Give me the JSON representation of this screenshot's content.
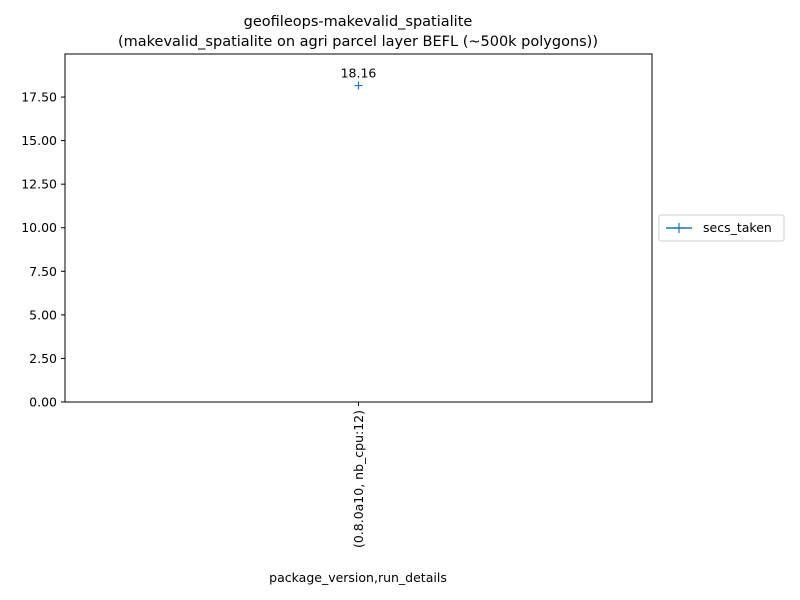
{
  "chart_data": {
    "type": "line",
    "title": "geofileops-makevalid_spatialite",
    "subtitle": "(makevalid_spatialite on agri parcel layer BEFL (~500k polygons))",
    "xlabel": "package_version,run_details",
    "ylabel": "",
    "categories": [
      "(0.8.0a10, nb_cpu:12)"
    ],
    "series": [
      {
        "name": "secs_taken",
        "values": [
          18.16
        ],
        "color": "#1f77b4",
        "marker": "plus"
      }
    ],
    "data_labels": [
      "18.16"
    ],
    "yticks": [
      "0.00",
      "2.50",
      "5.00",
      "7.50",
      "10.00",
      "12.50",
      "15.00",
      "17.50"
    ],
    "ylim": [
      0,
      19.97
    ],
    "grid": false,
    "legend_position": "right, outside plot"
  }
}
